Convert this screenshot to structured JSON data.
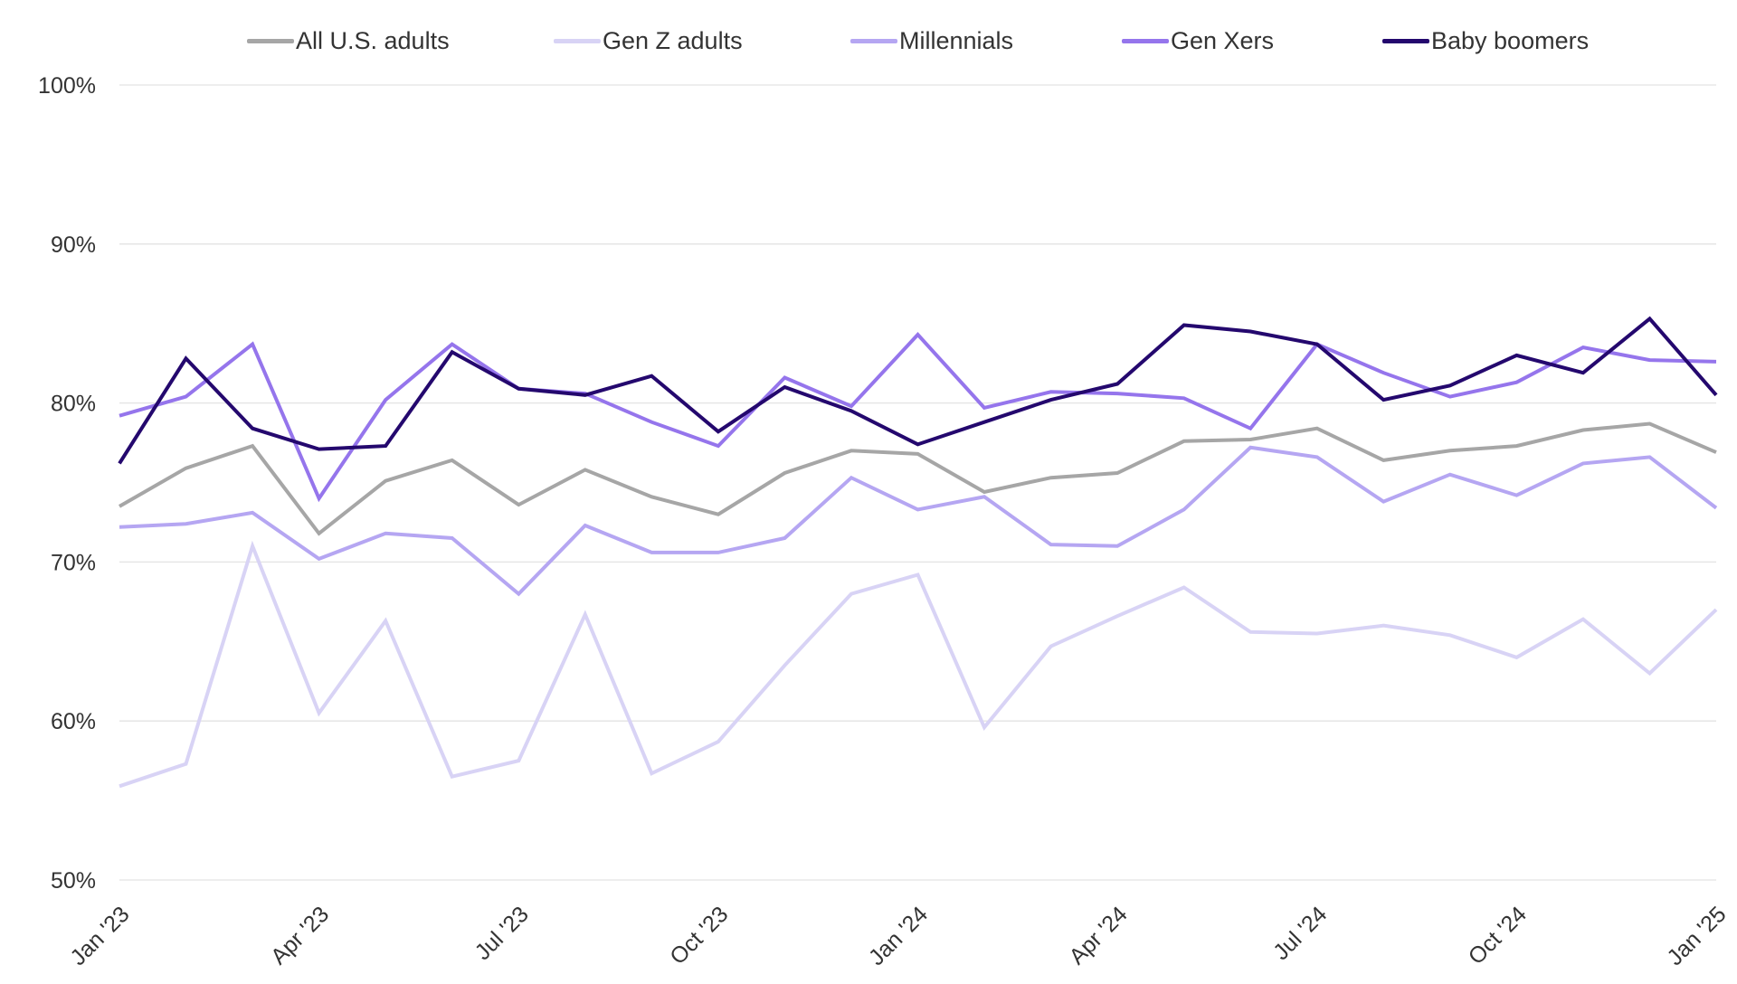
{
  "chart_data": {
    "type": "line",
    "title": "",
    "xlabel": "",
    "ylabel": "",
    "ylim": [
      50,
      100
    ],
    "y_ticks": [
      "50%",
      "60%",
      "70%",
      "80%",
      "90%",
      "100%"
    ],
    "y_tick_values": [
      50,
      60,
      70,
      80,
      90,
      100
    ],
    "x_tick_labels": [
      "Jan '23",
      "Apr '23",
      "Jul '23",
      "Oct '23",
      "Jan '24",
      "Apr '24",
      "Jul '24",
      "Oct '24",
      "Jan '25"
    ],
    "x": [
      "2023-01",
      "2023-02",
      "2023-03",
      "2023-04",
      "2023-05",
      "2023-06",
      "2023-07",
      "2023-08",
      "2023-09",
      "2023-10",
      "2023-11",
      "2023-12",
      "2024-01",
      "2024-02",
      "2024-03",
      "2024-04",
      "2024-05",
      "2024-06",
      "2024-07",
      "2024-08",
      "2024-09",
      "2024-10",
      "2024-11",
      "2024-12",
      "2025-01"
    ],
    "grid": true,
    "legend_position": "top",
    "series": [
      {
        "name": "All U.S. adults",
        "color": "#a6a6a6",
        "values": [
          73.5,
          75.9,
          77.3,
          71.8,
          75.1,
          76.4,
          73.6,
          75.8,
          74.1,
          73.0,
          75.6,
          77.0,
          76.8,
          74.4,
          75.3,
          75.6,
          77.6,
          77.7,
          78.4,
          76.4,
          77.0,
          77.3,
          78.3,
          78.7,
          76.9
        ]
      },
      {
        "name": "Gen Z adults",
        "color": "#d8d3f5",
        "values": [
          55.9,
          57.3,
          71.0,
          60.5,
          66.3,
          56.5,
          57.5,
          66.7,
          56.7,
          58.7,
          63.5,
          68.0,
          69.2,
          59.6,
          64.7,
          66.6,
          68.4,
          65.6,
          65.5,
          66.0,
          65.4,
          64.0,
          66.4,
          63.0,
          67.0
        ]
      },
      {
        "name": "Millennials",
        "color": "#b5a6f2",
        "values": [
          72.2,
          72.4,
          73.1,
          70.2,
          71.8,
          71.5,
          68.0,
          72.3,
          70.6,
          70.6,
          71.5,
          75.3,
          73.3,
          74.1,
          71.1,
          71.0,
          73.3,
          77.2,
          76.6,
          73.8,
          75.5,
          74.2,
          76.2,
          76.6,
          73.4
        ]
      },
      {
        "name": "Gen Xers",
        "color": "#9575ec",
        "values": [
          79.2,
          80.4,
          83.7,
          74.0,
          80.2,
          83.7,
          80.9,
          80.6,
          78.8,
          77.3,
          81.6,
          79.8,
          84.3,
          79.7,
          80.7,
          80.6,
          80.3,
          78.4,
          83.7,
          81.9,
          80.4,
          81.3,
          83.5,
          82.7,
          82.6
        ]
      },
      {
        "name": "Baby boomers",
        "color": "#24086e",
        "values": [
          76.2,
          82.8,
          78.4,
          77.1,
          77.3,
          83.2,
          80.9,
          80.5,
          81.7,
          78.2,
          81.0,
          79.5,
          77.4,
          78.8,
          80.2,
          81.2,
          84.9,
          84.5,
          83.7,
          80.2,
          81.1,
          83.0,
          81.9,
          85.3,
          80.5
        ]
      }
    ]
  }
}
